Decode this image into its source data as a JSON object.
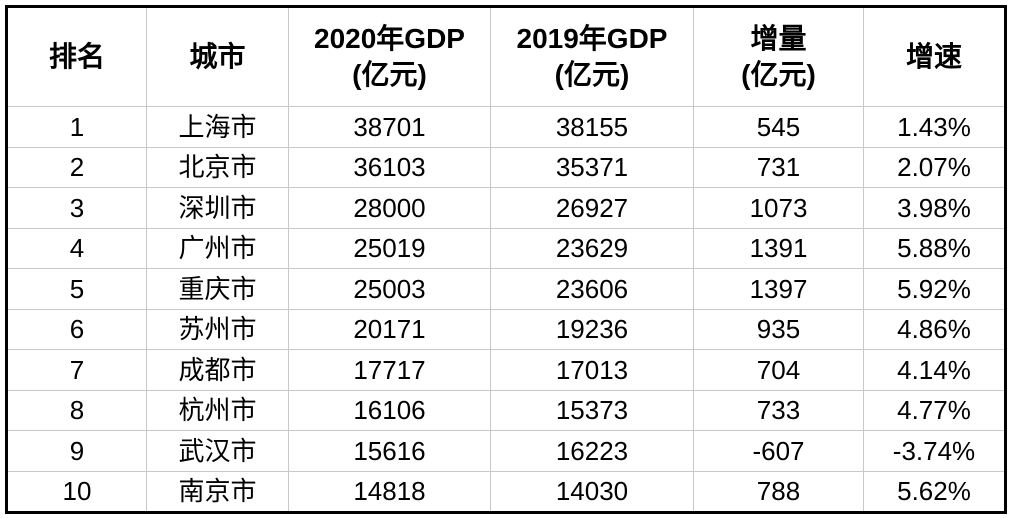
{
  "table": {
    "header": [
      [
        "排名"
      ],
      [
        "城市"
      ],
      [
        "2020年GDP",
        "(亿元)"
      ],
      [
        "2019年GDP",
        "(亿元)"
      ],
      [
        "增量",
        "(亿元)"
      ],
      [
        "增速"
      ]
    ],
    "rows": [
      [
        1,
        "上海市",
        38701,
        38155,
        545,
        "1.43%"
      ],
      [
        2,
        "北京市",
        36103,
        35371,
        731,
        "2.07%"
      ],
      [
        3,
        "深圳市",
        28000,
        26927,
        1073,
        "3.98%"
      ],
      [
        4,
        "广州市",
        25019,
        23629,
        1391,
        "5.88%"
      ],
      [
        5,
        "重庆市",
        25003,
        23606,
        1397,
        "5.92%"
      ],
      [
        6,
        "苏州市",
        20171,
        19236,
        935,
        "4.86%"
      ],
      [
        7,
        "成都市",
        17717,
        17013,
        704,
        "4.14%"
      ],
      [
        8,
        "杭州市",
        16106,
        15373,
        733,
        "4.77%"
      ],
      [
        9,
        "武汉市",
        15616,
        16223,
        -607,
        "-3.74%"
      ],
      [
        10,
        "南京市",
        14818,
        14030,
        788,
        "5.62%"
      ]
    ]
  }
}
